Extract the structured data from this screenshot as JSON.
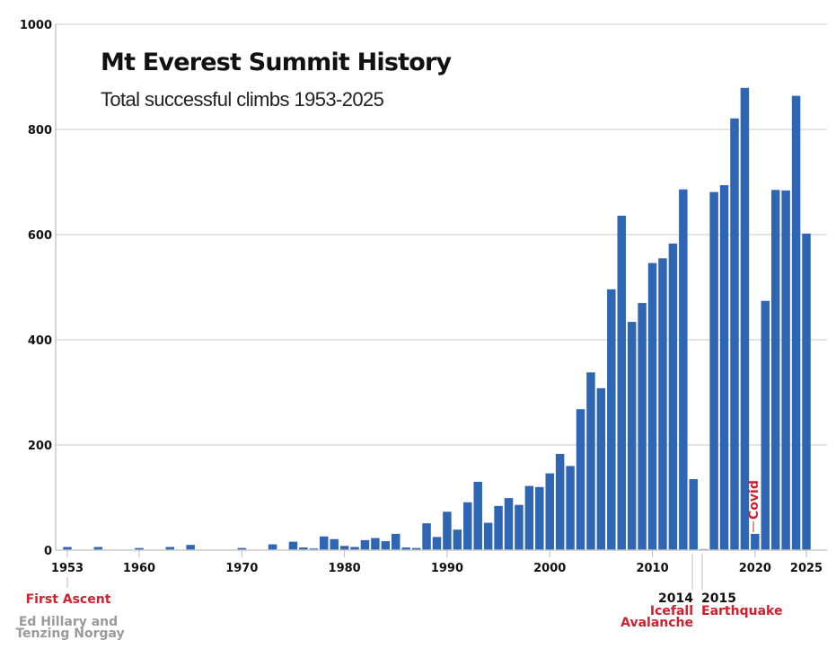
{
  "chart_data": {
    "type": "bar",
    "title": "Mt Everest Summit History",
    "subtitle": "Total successful climbs 1953-2025",
    "xlabel": "",
    "ylabel": "",
    "ylim": [
      0,
      1000
    ],
    "yticks": [
      "0",
      "200",
      "400",
      "600",
      "800",
      "1000"
    ],
    "xticks": [
      "1953",
      "1960",
      "1970",
      "1980",
      "1990",
      "2000",
      "2010",
      "2020",
      "2025"
    ],
    "grid": true,
    "bar_color": "#2f66b3",
    "annotation_color": "#d0202e",
    "x": [
      1953,
      1954,
      1955,
      1956,
      1957,
      1958,
      1959,
      1960,
      1961,
      1962,
      1963,
      1964,
      1965,
      1966,
      1967,
      1968,
      1969,
      1970,
      1971,
      1972,
      1973,
      1974,
      1975,
      1976,
      1977,
      1978,
      1979,
      1980,
      1981,
      1982,
      1983,
      1984,
      1985,
      1986,
      1987,
      1988,
      1989,
      1990,
      1991,
      1992,
      1993,
      1994,
      1995,
      1996,
      1997,
      1998,
      1999,
      2000,
      2001,
      2002,
      2003,
      2004,
      2005,
      2006,
      2007,
      2008,
      2009,
      2010,
      2011,
      2012,
      2013,
      2014,
      2015,
      2016,
      2017,
      2018,
      2019,
      2020,
      2021,
      2022,
      2023,
      2024,
      2025
    ],
    "values": [
      6,
      0,
      0,
      6,
      0,
      0,
      0,
      4,
      0,
      0,
      6,
      0,
      10,
      0,
      0,
      0,
      0,
      4,
      0,
      0,
      11,
      0,
      16,
      5,
      3,
      26,
      21,
      8,
      6,
      19,
      23,
      17,
      31,
      5,
      4,
      51,
      25,
      73,
      39,
      91,
      130,
      52,
      84,
      99,
      86,
      122,
      120,
      146,
      183,
      160,
      268,
      338,
      308,
      496,
      636,
      434,
      470,
      546,
      555,
      583,
      686,
      135,
      2,
      681,
      694,
      821,
      879,
      31,
      474,
      685,
      684,
      864,
      602
    ],
    "annotations": {
      "first_ascent": {
        "year": "1953",
        "label": "First Ascent",
        "note_line1": "Ed Hillary and",
        "note_line2": "Tenzing Norgay"
      },
      "avalanche": {
        "year": "2014",
        "line1": "Icefall",
        "line2": "Avalanche"
      },
      "earthquake": {
        "year": "2015",
        "line1": "Earthquake"
      },
      "covid": {
        "label": "Covid"
      }
    }
  }
}
